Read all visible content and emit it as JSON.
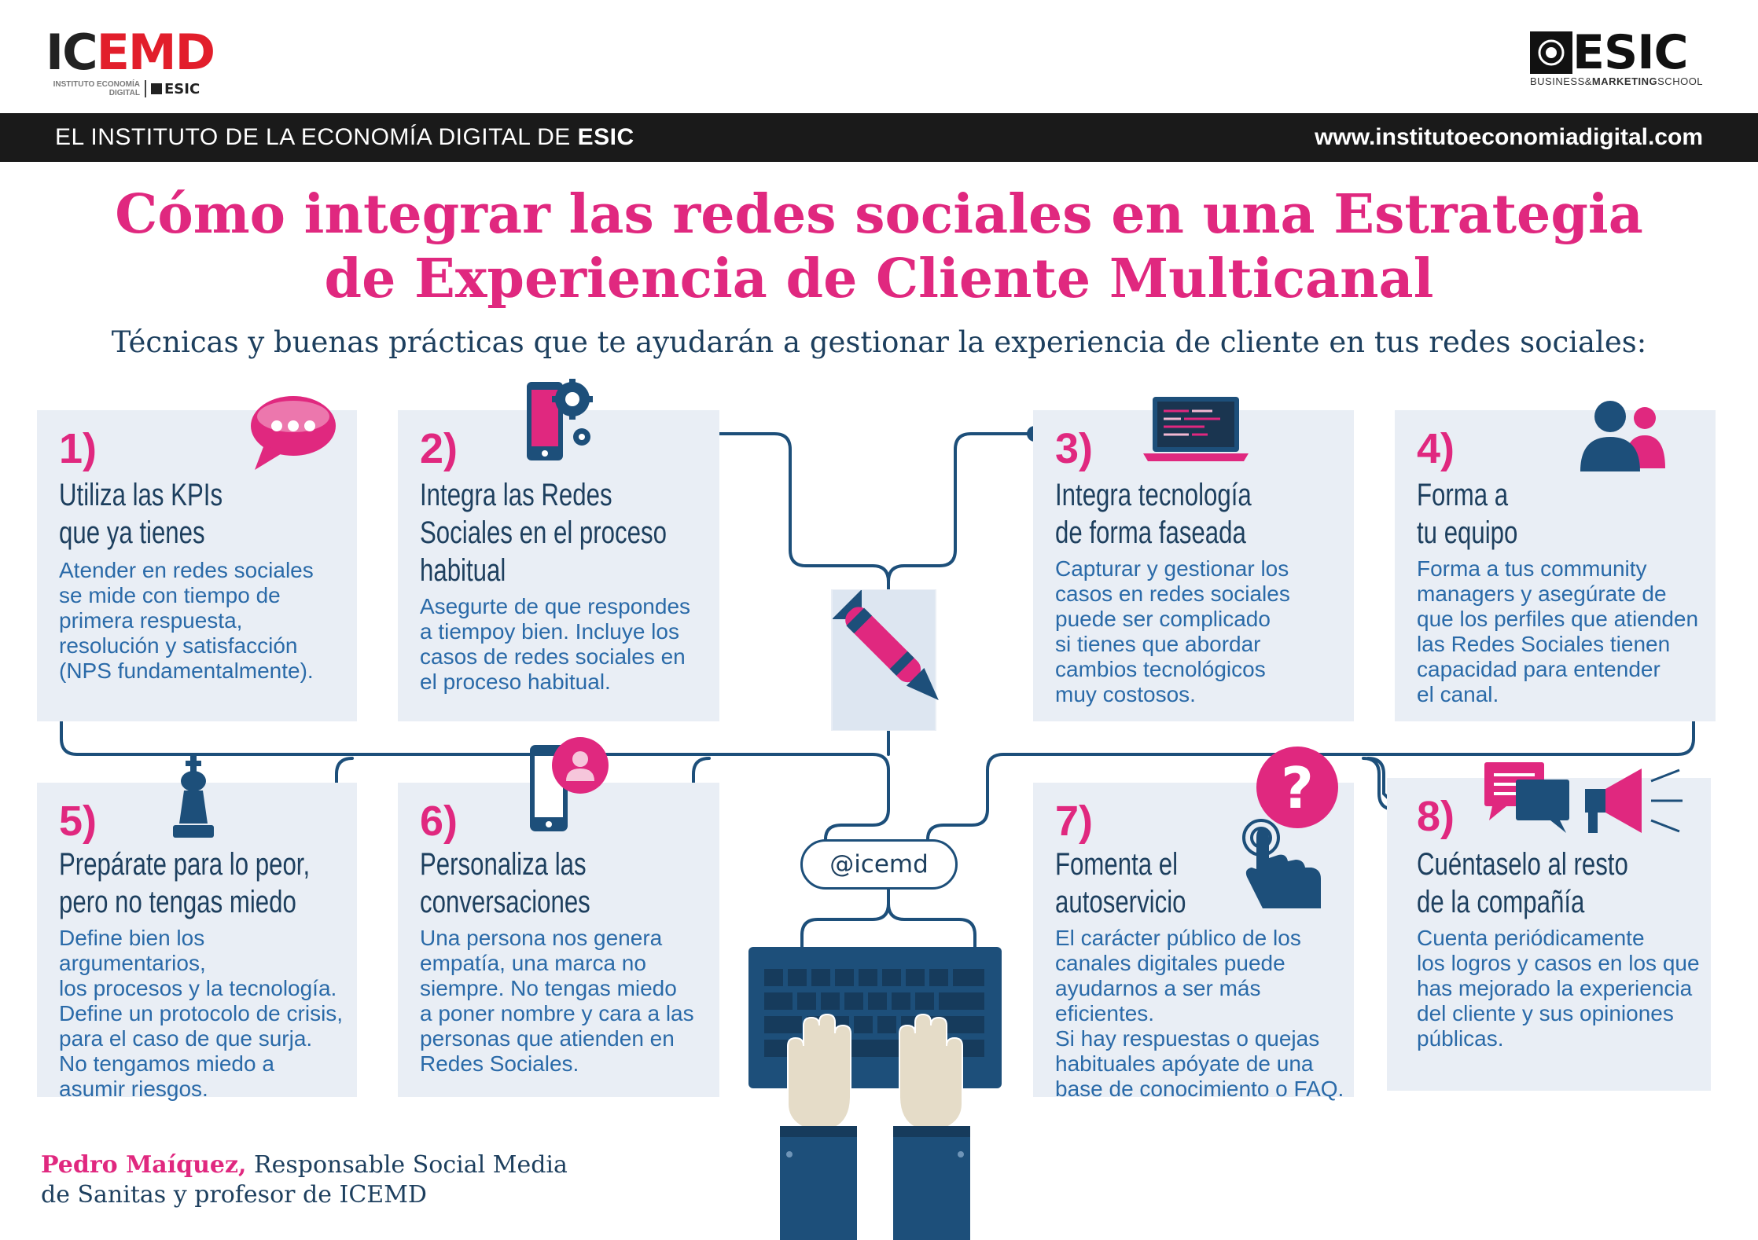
{
  "logos": {
    "icemd": {
      "name_part1": "IC",
      "name_part2": "EMD",
      "sub_line1": "INSTITUTO ECONOMÍA",
      "sub_line2": "DIGITAL",
      "esic": "ESIC"
    },
    "esic": {
      "name": "ESIC",
      "tagline_part1": "BUSINESS&",
      "tagline_part2": "MARKETING",
      "tagline_part3": "SCHOOL"
    }
  },
  "topbar": {
    "left_text": "EL INSTITUTO DE LA ECONOMÍA DIGITAL DE ",
    "left_bold": "ESIC",
    "url": "www.institutoeconomiadigital.com"
  },
  "title": {
    "line1": "Cómo integrar las redes sociales en una Estrategia",
    "line2": "de Experiencia de Cliente Multicanal"
  },
  "subtitle": "Técnicas y buenas prácticas que te ayudarán a gestionar la experiencia de cliente en tus redes sociales:",
  "cards": [
    {
      "num": "1)",
      "head": [
        "Utiliza las KPIs",
        "que ya tienes"
      ],
      "body": [
        "Atender en redes sociales",
        "se mide con tiempo de",
        "primera respuesta,",
        "resolución y satisfacción",
        "(NPS fundamentalmente)."
      ],
      "icon": "chat-bubble-icon"
    },
    {
      "num": "2)",
      "head": [
        "Integra las Redes",
        "Sociales en el proceso",
        "habitual"
      ],
      "body": [
        "Asegurte de que respondes",
        "a tiempoy bien. Incluye los",
        "casos de redes sociales en",
        "el proceso habitual."
      ],
      "icon": "phone-gear-icon"
    },
    {
      "num": "3)",
      "head": [
        "Integra tecnología",
        "de forma faseada"
      ],
      "body": [
        "Capturar y gestionar los",
        "casos en redes sociales",
        "puede ser complicado",
        "si tienes que abordar",
        "cambios tecnológicos",
        "muy costosos."
      ],
      "icon": "laptop-icon"
    },
    {
      "num": "4)",
      "head": [
        "Forma a",
        "tu equipo"
      ],
      "body": [
        "Forma a tus community",
        "managers y asegúrate de",
        "que los perfiles que atienden",
        "las Redes Sociales tienen",
        "capacidad para entender",
        "el canal."
      ],
      "icon": "team-icon"
    },
    {
      "num": "5)",
      "head": [
        "Prepárate para lo peor,",
        "pero no tengas miedo"
      ],
      "body": [
        "Define bien los argumentarios,",
        "los procesos y la tecnología.",
        "Define un protocolo de crisis,",
        "para el caso de que surja.",
        "No tengamos miedo a",
        "asumir riesgos."
      ],
      "icon": "chess-king-icon"
    },
    {
      "num": "6)",
      "head": [
        "Personaliza las",
        "conversaciones"
      ],
      "body": [
        "Una persona nos genera",
        "empatía, una marca no",
        "siempre. No tengas miedo",
        "a poner nombre y cara a las",
        "personas que atienden en",
        "Redes Sociales."
      ],
      "icon": "phone-user-icon"
    },
    {
      "num": "7)",
      "head": [
        "Fomenta el",
        "autoservicio"
      ],
      "body": [
        "El carácter público de los",
        "canales digitales puede",
        "ayudarnos a ser más eficientes.",
        "Si hay respuestas o quejas",
        "habituales apóyate de una",
        "base de conocimiento o FAQ."
      ],
      "icon": "question-hand-icon"
    },
    {
      "num": "8)",
      "head": [
        "Cuéntaselo al resto",
        "de la compañía"
      ],
      "body": [
        "Cuenta periódicamente",
        "los logros y casos en los que",
        "has mejorado la experiencia",
        "del cliente y sus opiniones",
        "públicas."
      ],
      "icon": "megaphone-icon"
    }
  ],
  "center": {
    "handle": "@icemd",
    "icons": [
      "document-pen-icon",
      "keyboard-icon",
      "hands-icon"
    ]
  },
  "author": {
    "name": "Pedro Maíquez,",
    "role_line1": " Responsable Social Media",
    "role_line2": "de Sanitas y profesor de ICEMD"
  },
  "colors": {
    "pink": "#e0287f",
    "navy": "#1d3f5e",
    "blue": "#2a6aa8",
    "card": "#e9eef5",
    "bar": "#1a1a1a"
  }
}
